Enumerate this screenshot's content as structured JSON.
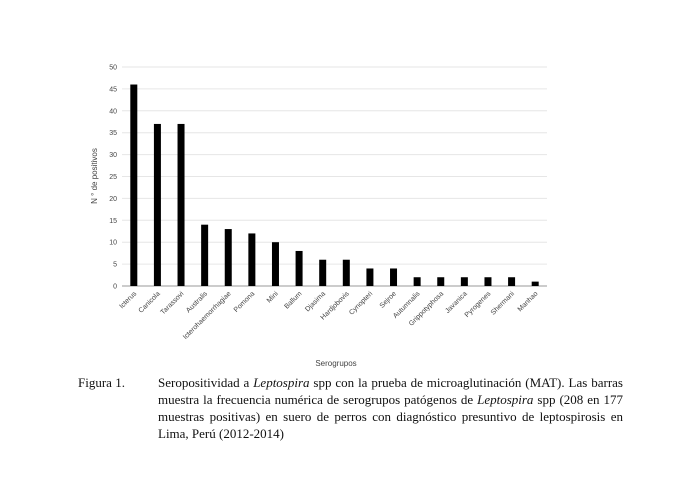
{
  "chart_data": {
    "type": "bar",
    "categories": [
      "Icterus",
      "Canicola",
      "Tarassovi",
      "Australis",
      "Icterohaemorrhagiae",
      "Pomona",
      "Mini",
      "Ballum",
      "Djasima",
      "Hardjobovis",
      "Cynopteri",
      "Sejroe",
      "Autumnalis",
      "Grippotyphosa",
      "Javanica",
      "Pyrogenes",
      "Shermani",
      "Manhao"
    ],
    "values": [
      46,
      37,
      37,
      14,
      13,
      12,
      10,
      8,
      6,
      6,
      4,
      4,
      2,
      2,
      2,
      2,
      2,
      1
    ],
    "ylim": [
      0,
      50
    ],
    "yticks": [
      0,
      5,
      10,
      15,
      20,
      25,
      30,
      35,
      40,
      45,
      50
    ],
    "ylabel": "N ° de positivos",
    "xlabel": "Serogrupos",
    "grid": true,
    "bar_color": "#000000",
    "grid_color": "#e6e6e6"
  },
  "caption": {
    "label": "Figura 1.",
    "part1": "Seropositividad a ",
    "italic1": "Leptospira",
    "part2": " spp con la prueba de microaglutinación (MAT). Las barras muestra la frecuencia numérica de serogrupos patógenos de ",
    "italic2": "Leptospira",
    "part3": " spp (208 en 177 muestras positivas) en suero de perros con diagnóstico presuntivo de leptospirosis en Lima, Perú (2012-2014)"
  }
}
